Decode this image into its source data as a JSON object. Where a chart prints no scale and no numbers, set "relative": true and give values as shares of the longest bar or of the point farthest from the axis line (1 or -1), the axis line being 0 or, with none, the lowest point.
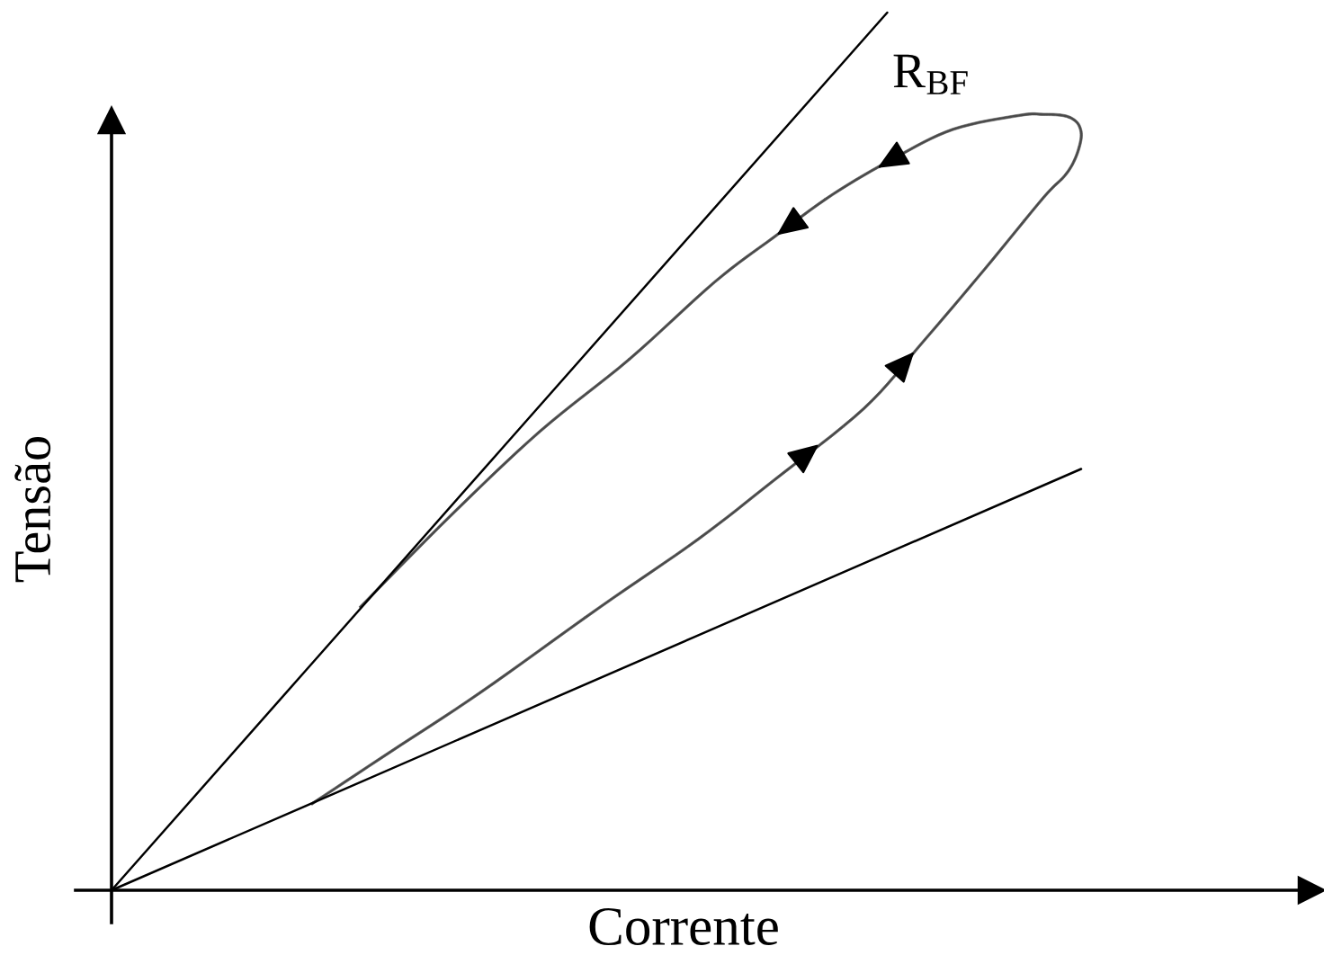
{
  "chart_data": {
    "type": "line",
    "relative": true,
    "xlabel": "Corrente",
    "ylabel": "Tensão",
    "annotations": [
      "R$_{BF}$"
    ],
    "categories": [
      null,
      null,
      null,
      null,
      null,
      null
    ],
    "series": [
      {
        "color": "#000000",
        "values": [
          0,
          0.25,
          0.5,
          0.75,
          1,
          null
        ]
      },
      {
        "color": "#000000",
        "values": [
          0,
          0.096,
          0.192,
          0.288,
          0.384,
          0.48
        ]
      }
    ]
  }
}
